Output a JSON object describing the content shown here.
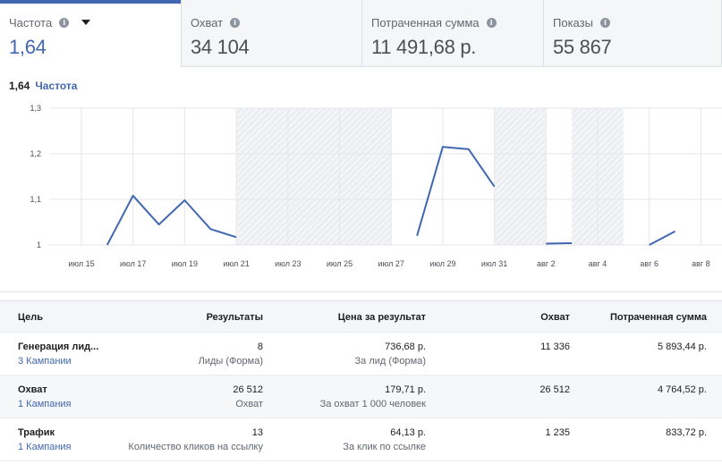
{
  "tabs": [
    {
      "title": "Частота",
      "value": "1,64",
      "active": true
    },
    {
      "title": "Охват",
      "value": "34 104",
      "active": false
    },
    {
      "title": "Потраченная сумма",
      "value": "11 491,68 р.",
      "active": false
    },
    {
      "title": "Показы",
      "value": "55 867",
      "active": false
    }
  ],
  "chart_header": {
    "value": "1,64",
    "metric": "Частота"
  },
  "chart_data": {
    "type": "line",
    "series": [
      {
        "name": "Частота",
        "segments": [
          [
            [
              "2021-07-16",
              1.0
            ],
            [
              "2021-07-17",
              1.108
            ],
            [
              "2021-07-18",
              1.045
            ],
            [
              "2021-07-19",
              1.098
            ],
            [
              "2021-07-20",
              1.035
            ],
            [
              "2021-07-21",
              1.017
            ]
          ],
          [
            [
              "2021-07-28",
              1.02
            ],
            [
              "2021-07-29",
              1.215
            ],
            [
              "2021-07-30",
              1.21
            ],
            [
              "2021-07-31",
              1.128
            ]
          ],
          [
            [
              "2021-08-02",
              1.003
            ],
            [
              "2021-08-03",
              1.004
            ]
          ],
          [
            [
              "2021-08-06",
              1.0
            ],
            [
              "2021-08-07",
              1.03
            ]
          ]
        ]
      }
    ],
    "ylim": [
      1,
      1.3
    ],
    "yticks": [
      "1",
      "1,1",
      "1,2",
      "1,3"
    ],
    "xticks": [
      "июл 15",
      "июл 17",
      "июл 19",
      "июл 21",
      "июл 23",
      "июл 25",
      "июл 27",
      "июл 29",
      "июл 31",
      "авг 2",
      "авг 4",
      "авг 6",
      "авг 8"
    ],
    "hatched_ranges": [
      [
        "2021-07-21",
        "2021-07-27"
      ],
      [
        "2021-07-31",
        "2021-08-02"
      ],
      [
        "2021-08-03",
        "2021-08-05"
      ]
    ],
    "grid": true,
    "line_color": "#4267b2"
  },
  "table": {
    "headers": {
      "goal": "Цель",
      "results": "Результаты",
      "cpr": "Цена за результат",
      "reach": "Охват",
      "spend": "Потраченная сумма"
    },
    "rows": [
      {
        "goal": "Генерация лид...",
        "campaigns": "3 Кампании",
        "results": "8",
        "results_type": "Лиды (Форма)",
        "cpr": "736,68 р.",
        "cpr_type": "За лид (Форма)",
        "reach": "11 336",
        "spend": "5 893,44 р."
      },
      {
        "goal": "Охват",
        "campaigns": "1 Кампания",
        "results": "26 512",
        "results_type": "Охват",
        "cpr": "179,71 р.",
        "cpr_type": "За охват 1 000 человек",
        "reach": "26 512",
        "spend": "4 764,52 р."
      },
      {
        "goal": "Трафик",
        "campaigns": "1 Кампания",
        "results": "13",
        "results_type": "Количество кликов на ссылку",
        "cpr": "64,13 р.",
        "cpr_type": "За клик по ссылке",
        "reach": "1 235",
        "spend": "833,72 р."
      }
    ]
  },
  "icons": {
    "info": "info-icon",
    "dropdown": "caret-down-icon"
  }
}
